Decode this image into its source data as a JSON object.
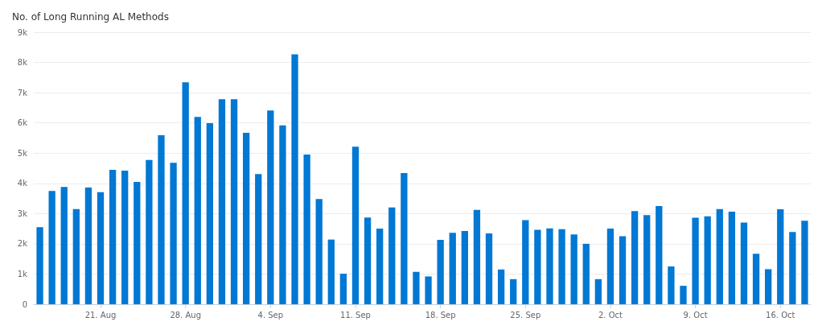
{
  "chart_data": {
    "type": "bar",
    "title": "No. of Long Running AL Methods",
    "categories": [
      null,
      null,
      null,
      null,
      null,
      "21. Aug",
      null,
      null,
      null,
      null,
      null,
      null,
      "28. Aug",
      null,
      null,
      null,
      null,
      null,
      null,
      "4. Sep",
      null,
      null,
      null,
      null,
      null,
      null,
      "11. Sep",
      null,
      null,
      null,
      null,
      null,
      null,
      "18. Sep",
      null,
      null,
      null,
      null,
      null,
      null,
      "25. Sep",
      null,
      null,
      null,
      null,
      null,
      null,
      "2. Oct",
      null,
      null,
      null,
      null,
      null,
      null,
      "9. Oct",
      null,
      null,
      null,
      null,
      null,
      null,
      "16. Oct",
      null,
      null
    ],
    "values": [
      2550,
      3750,
      3880,
      3150,
      3860,
      3710,
      4450,
      4420,
      4050,
      4770,
      5590,
      4680,
      7340,
      6200,
      5990,
      6780,
      6780,
      5670,
      4310,
      6410,
      5920,
      8270,
      4950,
      3480,
      2140,
      1010,
      5210,
      2870,
      2500,
      3200,
      4340,
      1070,
      920,
      2130,
      2360,
      2420,
      3120,
      2340,
      1150,
      830,
      2780,
      2460,
      2510,
      2480,
      2310,
      2000,
      830,
      2500,
      2250,
      3080,
      2950,
      3250,
      1250,
      610,
      2860,
      2910,
      3150,
      3060,
      2700,
      1670,
      1160,
      3140,
      2390,
      2760
    ],
    "color": "#0078d4",
    "ylim": [
      0,
      9000
    ],
    "yticks": [
      {
        "value": 0,
        "label": "0"
      },
      {
        "value": 1000,
        "label": "1k"
      },
      {
        "value": 2000,
        "label": "2k"
      },
      {
        "value": 3000,
        "label": "3k"
      },
      {
        "value": 4000,
        "label": "4k"
      },
      {
        "value": 5000,
        "label": "5k"
      },
      {
        "value": 6000,
        "label": "6k"
      },
      {
        "value": 7000,
        "label": "7k"
      },
      {
        "value": 8000,
        "label": "8k"
      },
      {
        "value": 9000,
        "label": "9k"
      }
    ],
    "grid": "y"
  }
}
